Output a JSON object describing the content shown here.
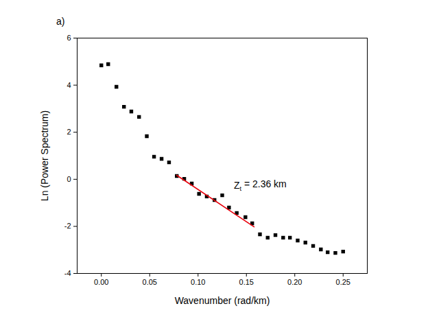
{
  "chart_data": {
    "type": "scatter",
    "title": "a)",
    "x_label": "Wavenumber (rad/km)",
    "y_label": "Ln (Power Spectrum)",
    "xlim": [
      -0.025,
      0.275
    ],
    "ylim": [
      -4,
      6
    ],
    "xticks": [
      {
        "value": 0,
        "label": "0.00"
      },
      {
        "value": 0.05,
        "label": "0.05"
      },
      {
        "value": 0.1,
        "label": "0.10"
      },
      {
        "value": 0.15,
        "label": "0.15"
      },
      {
        "value": 0.2,
        "label": "0.20"
      },
      {
        "value": 0.25,
        "label": "0.25"
      }
    ],
    "yticks": [
      -4,
      -2,
      0,
      2,
      4,
      6
    ],
    "grid": false,
    "series": [
      {
        "type": "scatter",
        "color": "#000000",
        "marker": "square",
        "x": [
          0.0,
          0.0071,
          0.0156,
          0.0234,
          0.031,
          0.039,
          0.047,
          0.0545,
          0.0623,
          0.07,
          0.078,
          0.0857,
          0.0935,
          0.101,
          0.109,
          0.117,
          0.125,
          0.132,
          0.14,
          0.149,
          0.156,
          0.164,
          0.172,
          0.18,
          0.188,
          0.195,
          0.203,
          0.211,
          0.219,
          0.227,
          0.234,
          0.242,
          0.25
        ],
        "values": [
          4.84,
          4.89,
          3.93,
          3.08,
          2.88,
          2.65,
          1.83,
          0.96,
          0.87,
          0.72,
          0.14,
          0.02,
          -0.18,
          -0.62,
          -0.73,
          -0.88,
          -0.68,
          -1.2,
          -1.43,
          -1.61,
          -1.87,
          -2.34,
          -2.48,
          -2.37,
          -2.48,
          -2.48,
          -2.6,
          -2.69,
          -2.83,
          -2.98,
          -3.1,
          -3.13,
          -3.07
        ]
      },
      {
        "type": "line",
        "color": "#e8000b",
        "line_style": "solid",
        "x": [
          0.078,
          0.158
        ],
        "values": [
          0.17,
          -2.02
        ]
      }
    ],
    "annotations": [
      {
        "text": "Z",
        "subscript": "t",
        "after": " = 2.36 km",
        "x": 0.137,
        "y": -0.27
      }
    ]
  }
}
